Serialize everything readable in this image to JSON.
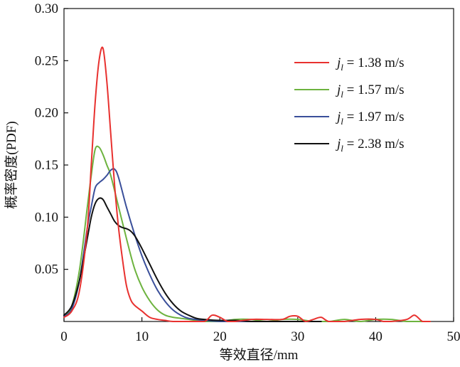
{
  "chart_data": {
    "type": "line",
    "title": "",
    "xlabel": "等效直径/mm",
    "ylabel": "概率密度(PDF)",
    "xlim": [
      0,
      50
    ],
    "ylim": [
      0,
      0.3
    ],
    "x_ticks": [
      0,
      10,
      20,
      30,
      40,
      50
    ],
    "y_ticks": [
      0.05,
      0.1,
      0.15,
      0.2,
      0.25,
      0.3
    ],
    "x_tick_labels": [
      "0",
      "10",
      "20",
      "30",
      "40",
      "50"
    ],
    "y_tick_labels": [
      "0.05",
      "0.10",
      "0.15",
      "0.20",
      "0.25",
      "0.30"
    ],
    "grid": false,
    "legend_position": "top-right",
    "series": [
      {
        "name": "j_l = 1.38 m/s",
        "label_var": "j",
        "label_sub": "l",
        "label_rest": " = 1.38 m/s",
        "color": "#e8312f",
        "x": [
          0,
          1,
          2,
          3,
          3.5,
          4,
          4.5,
          5,
          5.5,
          6,
          6.5,
          7,
          7.5,
          8,
          8.5,
          9,
          10,
          11,
          12,
          13,
          14,
          16,
          18,
          19,
          20,
          21,
          22,
          24,
          26,
          28,
          29,
          30,
          31,
          32,
          33,
          34,
          36,
          38,
          40,
          41,
          42,
          44,
          45,
          46,
          47
        ],
        "y": [
          0.004,
          0.01,
          0.03,
          0.09,
          0.15,
          0.21,
          0.25,
          0.262,
          0.23,
          0.18,
          0.13,
          0.09,
          0.06,
          0.035,
          0.022,
          0.016,
          0.01,
          0.004,
          0.002,
          0.001,
          0.0,
          0.0,
          0.0,
          0.006,
          0.004,
          0.0,
          0.0,
          0.002,
          0.002,
          0.002,
          0.005,
          0.005,
          0.0,
          0.002,
          0.004,
          0.0,
          0.0,
          0.002,
          0.002,
          0.0,
          0.0,
          0.002,
          0.006,
          0.0,
          0.0
        ]
      },
      {
        "name": "j_l = 1.57 m/s",
        "label_var": "j",
        "label_sub": "l",
        "label_rest": " = 1.57 m/s",
        "color": "#6db33f",
        "x": [
          0,
          1,
          2,
          3,
          3.5,
          4,
          4.5,
          5,
          5.5,
          6,
          7,
          8,
          9,
          10,
          11,
          12,
          13,
          14,
          15,
          16,
          18,
          20,
          22,
          24,
          26,
          28,
          30,
          32,
          34,
          36,
          38,
          40,
          42,
          44,
          46,
          47
        ],
        "y": [
          0.005,
          0.015,
          0.05,
          0.11,
          0.14,
          0.165,
          0.167,
          0.16,
          0.15,
          0.14,
          0.11,
          0.08,
          0.052,
          0.033,
          0.02,
          0.011,
          0.006,
          0.004,
          0.003,
          0.002,
          0.0,
          0.0,
          0.002,
          0.002,
          0.0,
          0.002,
          0.002,
          0.0,
          0.0,
          0.002,
          0.0,
          0.002,
          0.002,
          0.0,
          0.0,
          0.0
        ]
      },
      {
        "name": "j_l = 1.97 m/s",
        "label_var": "j",
        "label_sub": "l",
        "label_rest": " = 1.97 m/s",
        "color": "#3a4f9a",
        "x": [
          0,
          1,
          2,
          3,
          3.5,
          4,
          4.5,
          5,
          5.5,
          6,
          6.5,
          7,
          8,
          9,
          10,
          11,
          12,
          13,
          14,
          15,
          16,
          18,
          20,
          22,
          24,
          26,
          28,
          30,
          32
        ],
        "y": [
          0.005,
          0.012,
          0.04,
          0.09,
          0.11,
          0.128,
          0.133,
          0.136,
          0.14,
          0.145,
          0.146,
          0.138,
          0.11,
          0.085,
          0.063,
          0.045,
          0.03,
          0.019,
          0.011,
          0.006,
          0.003,
          0.001,
          0.0,
          0.0,
          0.0,
          0.0,
          0.0,
          0.0,
          0.0
        ]
      },
      {
        "name": "j_l = 2.38 m/s",
        "label_var": "j",
        "label_sub": "l",
        "label_rest": " = 2.38 m/s",
        "color": "#111111",
        "x": [
          0,
          1,
          2,
          3,
          3.5,
          4,
          4.5,
          5,
          5.5,
          6,
          6.5,
          7,
          7.5,
          8,
          8.5,
          9,
          9.5,
          10,
          11,
          12,
          13,
          14,
          15,
          16,
          17,
          18,
          20,
          22,
          24,
          26,
          28,
          30,
          32,
          33
        ],
        "y": [
          0.006,
          0.015,
          0.04,
          0.08,
          0.1,
          0.113,
          0.118,
          0.117,
          0.11,
          0.103,
          0.096,
          0.092,
          0.09,
          0.089,
          0.087,
          0.083,
          0.077,
          0.07,
          0.055,
          0.04,
          0.027,
          0.017,
          0.01,
          0.006,
          0.003,
          0.002,
          0.001,
          0.001,
          0.0,
          0.0,
          0.0,
          0.0,
          0.0,
          0.0
        ]
      }
    ]
  }
}
